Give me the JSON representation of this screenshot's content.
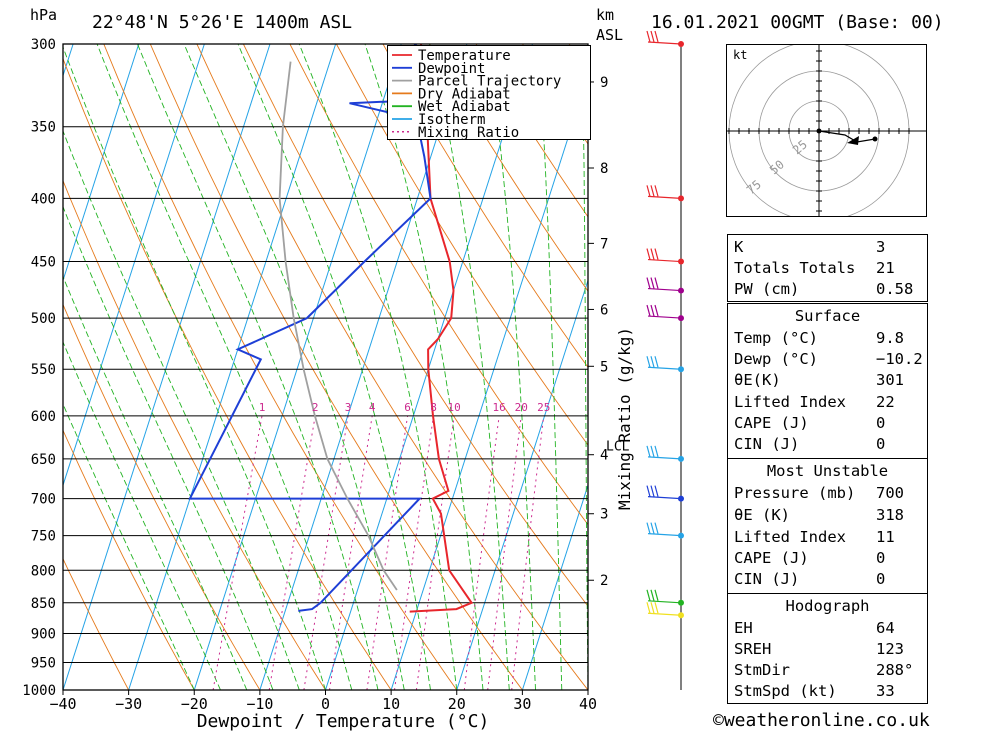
{
  "header": {
    "hpa_label": "hPa",
    "location": "22°48'N  5°26'E  1400m  ASL",
    "km_label": "km",
    "asl_label": "ASL",
    "datetime": "16.01.2021  00GMT  (Base: 00)"
  },
  "footer": {
    "copyright": "©weatheronline.co.uk"
  },
  "chart_data": {
    "type": "line",
    "title": "22°48'N  5°26'E  1400m  ASL",
    "xlabel": "Dewpoint / Temperature (°C)",
    "ylabel": "hPa",
    "xlim": [
      -40,
      40
    ],
    "ylim": [
      1000,
      300
    ],
    "x_ticks": [
      -40,
      -30,
      -20,
      -10,
      0,
      10,
      20,
      30,
      40
    ],
    "pressure_levels": [
      300,
      350,
      400,
      450,
      500,
      550,
      600,
      650,
      700,
      750,
      800,
      850,
      900,
      950,
      1000
    ],
    "km_axis": {
      "label": "km ASL",
      "ticks": [
        "9",
        "8",
        "7",
        "6",
        "5",
        "4",
        "3",
        "2"
      ],
      "ticks_hpa": [
        322,
        378,
        435,
        492,
        547,
        645,
        720,
        815
      ],
      "lcl_label": "LCL",
      "lcl_hpa": 645
    },
    "mixing_ratio": {
      "label": "Mixing Ratio (g/kg)",
      "values": [
        "1",
        "2",
        "3",
        "4",
        "6",
        "8",
        "10",
        "16",
        "20",
        "25"
      ]
    },
    "legend": {
      "position": "top-center",
      "items": [
        {
          "name": "Temperature",
          "color": "#e8262c"
        },
        {
          "name": "Dewpoint",
          "color": "#1e3fd6"
        },
        {
          "name": "Parcel Trajectory",
          "color": "#a0a0a0"
        },
        {
          "name": "Dry Adiabat",
          "color": "#e57a1c"
        },
        {
          "name": "Wet Adiabat",
          "color": "#22b322"
        },
        {
          "name": "Isotherm",
          "color": "#25a3e6"
        },
        {
          "name": "Mixing Ratio",
          "color": "#cc2b8f"
        }
      ]
    },
    "series": [
      {
        "name": "Temperature",
        "color": "#e8262c",
        "points": [
          [
            -17,
            300
          ],
          [
            -13,
            330
          ],
          [
            -12,
            350
          ],
          [
            -8,
            400
          ],
          [
            -2,
            450
          ],
          [
            0,
            475
          ],
          [
            1,
            500
          ],
          [
            0,
            520
          ],
          [
            -1,
            530
          ],
          [
            0,
            550
          ],
          [
            3,
            600
          ],
          [
            6,
            650
          ],
          [
            9,
            690
          ],
          [
            7,
            700
          ],
          [
            9,
            720
          ],
          [
            13,
            800
          ],
          [
            18,
            850
          ],
          [
            16,
            860
          ],
          [
            9,
            864
          ]
        ]
      },
      {
        "name": "Dewpoint",
        "color": "#1e3fd6",
        "points": [
          [
            -18,
            300
          ],
          [
            -13,
            312
          ],
          [
            -14,
            333
          ],
          [
            -25,
            335
          ],
          [
            -14,
            345
          ],
          [
            -11,
            370
          ],
          [
            -8,
            400
          ],
          [
            -15,
            450
          ],
          [
            -21,
            500
          ],
          [
            -30,
            530
          ],
          [
            -26,
            540
          ],
          [
            -30,
            700
          ],
          [
            -5,
            700
          ],
          [
            5,
            700
          ],
          [
            -5,
            850
          ],
          [
            -6,
            860
          ],
          [
            -8,
            863
          ]
        ]
      },
      {
        "name": "Parcel Trajectory",
        "color": "#a0a0a0",
        "points": [
          [
            -36,
            310
          ],
          [
            -34,
            350
          ],
          [
            -31,
            400
          ],
          [
            -27,
            450
          ],
          [
            -23,
            500
          ],
          [
            -19,
            550
          ],
          [
            -15,
            600
          ],
          [
            -11,
            650
          ],
          [
            -6,
            700
          ],
          [
            -1,
            750
          ],
          [
            3,
            800
          ],
          [
            6,
            830
          ]
        ]
      }
    ],
    "winds": [
      {
        "hpa": 300,
        "color": "#e8262c"
      },
      {
        "hpa": 400,
        "color": "#e8262c"
      },
      {
        "hpa": 450,
        "color": "#e8262c"
      },
      {
        "hpa": 475,
        "color": "#a0008e"
      },
      {
        "hpa": 500,
        "color": "#a0008e"
      },
      {
        "hpa": 550,
        "color": "#25a3e6"
      },
      {
        "hpa": 650,
        "color": "#25a3e6"
      },
      {
        "hpa": 700,
        "color": "#1e3fd6"
      },
      {
        "hpa": 750,
        "color": "#25a3e6"
      },
      {
        "hpa": 850,
        "color": "#22b322"
      },
      {
        "hpa": 870,
        "color": "#f0e020"
      }
    ]
  },
  "hodograph": {
    "unit_label": "kt",
    "ring_labels": [
      "25",
      "50",
      "75"
    ]
  },
  "indices": {
    "rows": [
      {
        "key": "K",
        "value": "3"
      },
      {
        "key": "Totals Totals",
        "value": "21"
      },
      {
        "key": "PW (cm)",
        "value": "0.58"
      }
    ]
  },
  "surface": {
    "title": "Surface",
    "rows": [
      {
        "key": "Temp (°C)",
        "value": "9.8"
      },
      {
        "key": "Dewp (°C)",
        "value": "−10.2"
      },
      {
        "key": "θE(K)",
        "value": "301"
      },
      {
        "key": "Lifted Index",
        "value": "22"
      },
      {
        "key": "CAPE (J)",
        "value": "0"
      },
      {
        "key": "CIN (J)",
        "value": "0"
      }
    ]
  },
  "most_unstable": {
    "title": "Most Unstable",
    "rows": [
      {
        "key": "Pressure (mb)",
        "value": "700"
      },
      {
        "key": "θE (K)",
        "value": "318"
      },
      {
        "key": "Lifted Index",
        "value": "11"
      },
      {
        "key": "CAPE (J)",
        "value": "0"
      },
      {
        "key": "CIN (J)",
        "value": "0"
      }
    ]
  },
  "hodograph_stats": {
    "title": "Hodograph",
    "rows": [
      {
        "key": "EH",
        "value": "64"
      },
      {
        "key": "SREH",
        "value": "123"
      },
      {
        "key": "StmDir",
        "value": "288°"
      },
      {
        "key": "StmSpd (kt)",
        "value": "33"
      }
    ]
  }
}
